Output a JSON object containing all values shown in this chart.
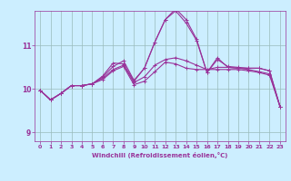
{
  "xlabel": "Windchill (Refroidissement éolien,°C)",
  "bg_color": "#cceeff",
  "line_color": "#993399",
  "grid_color": "#99bbbb",
  "xlim": [
    -0.5,
    23.5
  ],
  "ylim": [
    8.8,
    11.8
  ],
  "yticks": [
    9,
    10,
    11
  ],
  "xticks": [
    0,
    1,
    2,
    3,
    4,
    5,
    6,
    7,
    8,
    9,
    10,
    11,
    12,
    13,
    14,
    15,
    16,
    17,
    18,
    19,
    20,
    21,
    22,
    23
  ],
  "series": [
    [
      9.97,
      9.75,
      9.9,
      10.08,
      10.08,
      10.12,
      10.22,
      10.42,
      10.52,
      10.1,
      10.18,
      10.4,
      10.62,
      10.58,
      10.48,
      10.45,
      10.45,
      10.45,
      10.45,
      10.45,
      10.42,
      10.38,
      10.32,
      9.6
    ],
    [
      9.97,
      9.75,
      9.9,
      10.08,
      10.08,
      10.12,
      10.28,
      10.52,
      10.65,
      10.2,
      10.48,
      11.08,
      11.6,
      11.85,
      11.6,
      11.15,
      10.38,
      10.72,
      10.5,
      10.48,
      10.48,
      10.48,
      10.42,
      9.6
    ],
    [
      9.97,
      9.75,
      9.9,
      10.08,
      10.08,
      10.12,
      10.3,
      10.6,
      10.58,
      10.18,
      10.48,
      11.08,
      11.6,
      11.8,
      11.52,
      11.12,
      10.38,
      10.68,
      10.52,
      10.5,
      10.48,
      10.48,
      10.42,
      9.6
    ],
    [
      9.97,
      9.75,
      9.9,
      10.08,
      10.08,
      10.12,
      10.25,
      10.45,
      10.55,
      10.15,
      10.28,
      10.55,
      10.68,
      10.72,
      10.65,
      10.55,
      10.45,
      10.5,
      10.5,
      10.48,
      10.45,
      10.4,
      10.35,
      9.6
    ]
  ]
}
